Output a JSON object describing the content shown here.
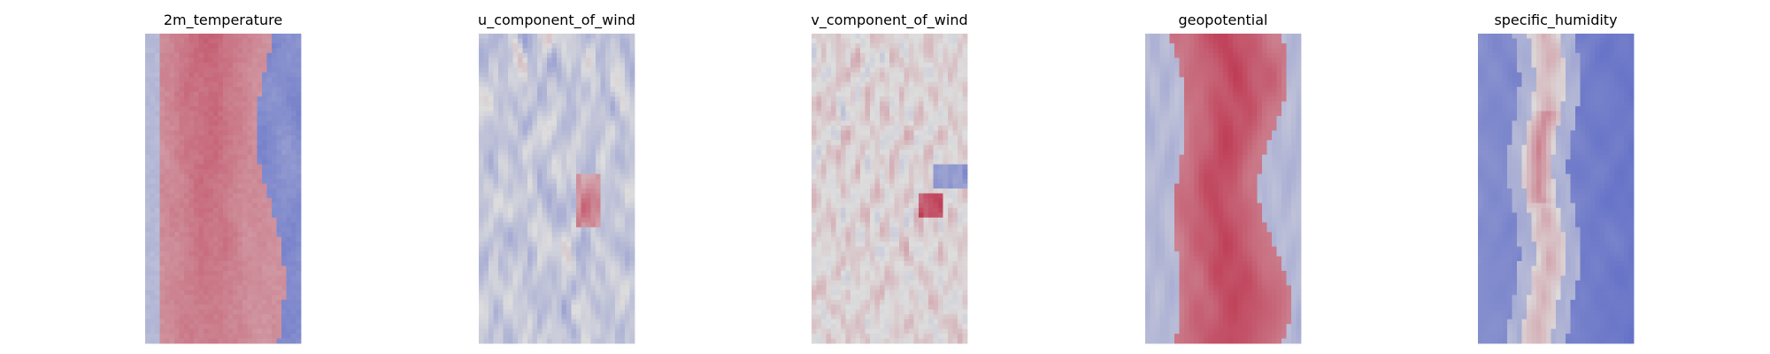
{
  "chart_data": {
    "type": "heatmap",
    "colormap": "coolwarm",
    "axes_visible": false,
    "grid": false,
    "colorbar": false,
    "panels": [
      {
        "title": "2m_temperature",
        "pattern": "temperature",
        "description_values": "red (high) central band, blue (low) lower/right band"
      },
      {
        "title": "u_component_of_wind",
        "pattern": "u_wind",
        "description_values": "mostly neutral-blue field with scattered red streaks"
      },
      {
        "title": "v_component_of_wind",
        "pattern": "v_wind",
        "description_values": "mostly neutral field with small red/blue eddies"
      },
      {
        "title": "geopotential",
        "pattern": "geopotential",
        "description_values": "red central band flanked by blue/neutral edges"
      },
      {
        "title": "specific_humidity",
        "pattern": "humidity",
        "description_values": "blue field with narrow red-neutral central streak"
      }
    ]
  }
}
